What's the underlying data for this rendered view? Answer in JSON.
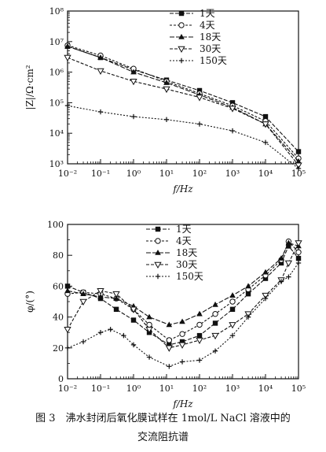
{
  "caption": {
    "line1": "图 3　沸水封闭后氧化膜试样在 1mol/L NaCl 溶液中的",
    "line2": "交流阻抗谱"
  },
  "chart_data": [
    {
      "type": "line",
      "panel": "top",
      "xscale": "log",
      "yscale": "log",
      "xlabel": "f/Hz",
      "ylabel": "|Z|/Ω·cm²",
      "xlim": [
        0.01,
        100000
      ],
      "ylim": [
        1000,
        100000000
      ],
      "xticks": [
        "10⁻²",
        "10⁻¹",
        "10⁰",
        "10¹",
        "10²",
        "10³",
        "10⁴",
        "10⁵"
      ],
      "yticks": [
        "10³",
        "10⁴",
        "10⁵",
        "10⁶",
        "10⁷",
        "10⁸"
      ],
      "legend_position": "top-right",
      "series": [
        {
          "name": "1天",
          "marker": "square-filled",
          "x": [
            0.01,
            0.1,
            1,
            10,
            100,
            1000,
            10000,
            100000
          ],
          "y": [
            7000000,
            3000000,
            1200000,
            550000,
            250000,
            100000,
            35000,
            2500
          ]
        },
        {
          "name": "4天",
          "marker": "circle-open",
          "x": [
            0.01,
            0.1,
            1,
            10,
            100,
            1000,
            10000,
            100000
          ],
          "y": [
            7500000,
            3500000,
            1300000,
            500000,
            200000,
            80000,
            25000,
            1500
          ]
        },
        {
          "name": "18天",
          "marker": "triangle-filled",
          "x": [
            0.01,
            0.1,
            1,
            10,
            100,
            1000,
            10000,
            100000
          ],
          "y": [
            7000000,
            3000000,
            1000000,
            450000,
            180000,
            70000,
            20000,
            1200
          ]
        },
        {
          "name": "30天",
          "marker": "triangle-down-open",
          "x": [
            0.01,
            0.1,
            1,
            10,
            100,
            1000,
            10000,
            100000
          ],
          "y": [
            3000000,
            1100000,
            500000,
            280000,
            150000,
            65000,
            20000,
            900
          ]
        },
        {
          "name": "150天",
          "marker": "plus",
          "x": [
            0.01,
            0.1,
            1,
            10,
            100,
            1000,
            10000,
            100000
          ],
          "y": [
            80000,
            50000,
            35000,
            28000,
            20000,
            12000,
            5000,
            700
          ]
        }
      ]
    },
    {
      "type": "line",
      "panel": "bottom",
      "xscale": "log",
      "yscale": "linear",
      "xlabel": "f/Hz",
      "ylabel": "φ/(°)",
      "xlim": [
        0.01,
        100000
      ],
      "ylim": [
        0,
        100
      ],
      "xticks": [
        "10⁻²",
        "10⁻¹",
        "10⁰",
        "10¹",
        "10²",
        "10³",
        "10⁴",
        "10⁵"
      ],
      "yticks": [
        "0",
        "20",
        "40",
        "60",
        "80",
        "100"
      ],
      "legend_position": "top-left",
      "series": [
        {
          "name": "1天",
          "marker": "square-filled",
          "x": [
            0.01,
            0.03,
            0.1,
            0.3,
            1,
            3,
            12,
            30,
            100,
            300,
            1000,
            3000,
            10000,
            30000,
            50000,
            100000
          ],
          "y": [
            60,
            56,
            52,
            45,
            38,
            30,
            22,
            24,
            28,
            36,
            45,
            55,
            65,
            75,
            86,
            78
          ]
        },
        {
          "name": "4天",
          "marker": "circle-open",
          "x": [
            0.01,
            0.03,
            0.1,
            0.3,
            1,
            3,
            12,
            30,
            100,
            300,
            1000,
            3000,
            10000,
            30000,
            50000,
            100000
          ],
          "y": [
            55,
            56,
            55,
            52,
            45,
            35,
            25,
            29,
            35,
            42,
            50,
            58,
            67,
            77,
            89,
            82
          ]
        },
        {
          "name": "18天",
          "marker": "triangle-filled",
          "x": [
            0.01,
            0.03,
            0.1,
            0.3,
            1,
            3,
            12,
            30,
            100,
            300,
            1000,
            3000,
            10000,
            30000,
            50000,
            100000
          ],
          "y": [
            57,
            55,
            53,
            52,
            47,
            40,
            35,
            37,
            42,
            48,
            54,
            60,
            69,
            78,
            88,
            86
          ]
        },
        {
          "name": "30天",
          "marker": "triangle-down-open",
          "x": [
            0.01,
            0.03,
            0.1,
            0.3,
            1,
            3,
            12,
            30,
            100,
            300,
            1000,
            3000,
            10000,
            30000,
            50000,
            100000
          ],
          "y": [
            32,
            50,
            57,
            55,
            45,
            32,
            20,
            22,
            25,
            28,
            35,
            42,
            54,
            64,
            75,
            88
          ]
        },
        {
          "name": "150天",
          "marker": "plus",
          "x": [
            0.01,
            0.03,
            0.1,
            0.2,
            0.5,
            1,
            3,
            12,
            30,
            100,
            300,
            1000,
            3000,
            10000,
            30000,
            50000,
            100000
          ],
          "y": [
            20,
            24,
            30,
            32,
            28,
            22,
            14,
            8,
            11,
            12,
            18,
            28,
            40,
            52,
            63,
            66,
            75
          ]
        }
      ]
    }
  ]
}
